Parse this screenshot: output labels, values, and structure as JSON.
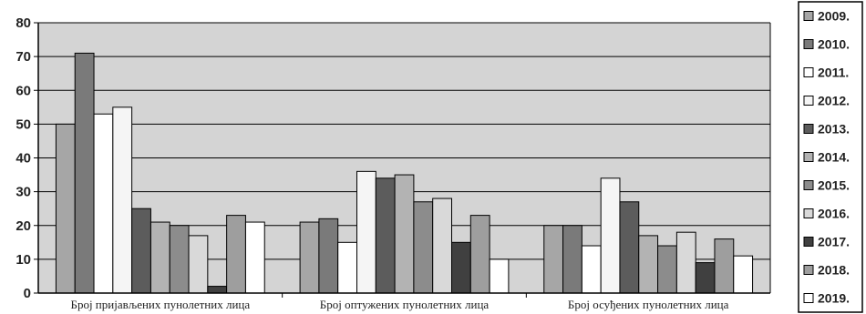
{
  "chart_data": {
    "type": "bar",
    "title": "",
    "xlabel": "",
    "ylabel": "",
    "ylim": [
      0,
      80
    ],
    "yticks": [
      0,
      10,
      20,
      30,
      40,
      50,
      60,
      70,
      80
    ],
    "grid": true,
    "legend_position": "right",
    "plot_background": "#d4d4d4",
    "categories": [
      "Број пријављених пунолетних лица",
      "Број оптужених пунолетних лица",
      "Број осуђених пунолетних лица"
    ],
    "series": [
      {
        "name": "2009.",
        "color": "#a6a6a6",
        "values": [
          50,
          21,
          20
        ]
      },
      {
        "name": "2010.",
        "color": "#7a7a7a",
        "values": [
          71,
          22,
          20
        ]
      },
      {
        "name": "2011.",
        "color": "#ffffff",
        "values": [
          53,
          15,
          14
        ]
      },
      {
        "name": "2012.",
        "color": "#f5f5f5",
        "values": [
          55,
          36,
          34
        ]
      },
      {
        "name": "2013.",
        "color": "#5c5c5c",
        "values": [
          25,
          34,
          27
        ]
      },
      {
        "name": "2014.",
        "color": "#b3b3b3",
        "values": [
          21,
          35,
          17
        ]
      },
      {
        "name": "2015.",
        "color": "#8c8c8c",
        "values": [
          20,
          27,
          14
        ]
      },
      {
        "name": "2016.",
        "color": "#d9d9d9",
        "values": [
          17,
          28,
          18
        ]
      },
      {
        "name": "2017.",
        "color": "#404040",
        "values": [
          2,
          15,
          9
        ]
      },
      {
        "name": "2018.",
        "color": "#9e9e9e",
        "values": [
          23,
          23,
          16
        ]
      },
      {
        "name": "2019.",
        "color": "#ffffff",
        "values": [
          21,
          10,
          11
        ]
      }
    ]
  }
}
